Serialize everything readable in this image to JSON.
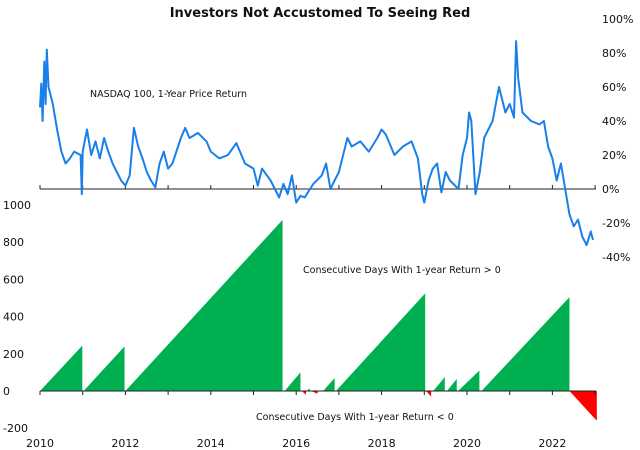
{
  "chart_data": [
    {
      "type": "line",
      "title": "Investors Not Accustomed To Seeing Red",
      "annotation": "NASDAQ 100, 1-Year Price Return",
      "y_axis_side": "right",
      "ylim": [
        -40,
        100
      ],
      "y_ticks": [
        "100%",
        "80%",
        "60%",
        "40%",
        "20%",
        "0%",
        "-20%",
        "-40%"
      ],
      "y_tick_values": [
        100,
        80,
        60,
        40,
        20,
        0,
        -20,
        -40
      ],
      "color": "#1a7fe8",
      "points": [
        [
          2010.0,
          48
        ],
        [
          2010.03,
          62
        ],
        [
          2010.06,
          40
        ],
        [
          2010.1,
          75
        ],
        [
          2010.13,
          50
        ],
        [
          2010.16,
          82
        ],
        [
          2010.2,
          60
        ],
        [
          2010.3,
          50
        ],
        [
          2010.4,
          35
        ],
        [
          2010.5,
          22
        ],
        [
          2010.6,
          15
        ],
        [
          2010.7,
          18
        ],
        [
          2010.8,
          22
        ],
        [
          2010.95,
          20
        ],
        [
          2010.98,
          -3
        ],
        [
          2011.0,
          22
        ],
        [
          2011.1,
          35
        ],
        [
          2011.2,
          20
        ],
        [
          2011.3,
          28
        ],
        [
          2011.4,
          18
        ],
        [
          2011.5,
          30
        ],
        [
          2011.6,
          22
        ],
        [
          2011.7,
          15
        ],
        [
          2011.8,
          10
        ],
        [
          2011.9,
          5
        ],
        [
          2012.0,
          2
        ],
        [
          2012.1,
          8
        ],
        [
          2012.2,
          36
        ],
        [
          2012.3,
          25
        ],
        [
          2012.4,
          18
        ],
        [
          2012.5,
          10
        ],
        [
          2012.6,
          5
        ],
        [
          2012.7,
          1
        ],
        [
          2012.8,
          15
        ],
        [
          2012.9,
          22
        ],
        [
          2013.0,
          12
        ],
        [
          2013.1,
          15
        ],
        [
          2013.3,
          30
        ],
        [
          2013.4,
          36
        ],
        [
          2013.5,
          30
        ],
        [
          2013.7,
          33
        ],
        [
          2013.9,
          28
        ],
        [
          2014.0,
          22
        ],
        [
          2014.2,
          18
        ],
        [
          2014.4,
          20
        ],
        [
          2014.6,
          27
        ],
        [
          2014.8,
          15
        ],
        [
          2015.0,
          12
        ],
        [
          2015.1,
          2
        ],
        [
          2015.2,
          12
        ],
        [
          2015.4,
          5
        ],
        [
          2015.6,
          -5
        ],
        [
          2015.7,
          3
        ],
        [
          2015.8,
          -3
        ],
        [
          2015.9,
          8
        ],
        [
          2016.0,
          -8
        ],
        [
          2016.1,
          -4
        ],
        [
          2016.2,
          -5
        ],
        [
          2016.4,
          3
        ],
        [
          2016.6,
          8
        ],
        [
          2016.7,
          15
        ],
        [
          2016.8,
          0
        ],
        [
          2016.9,
          5
        ],
        [
          2017.0,
          10
        ],
        [
          2017.2,
          30
        ],
        [
          2017.3,
          25
        ],
        [
          2017.5,
          28
        ],
        [
          2017.7,
          22
        ],
        [
          2017.9,
          30
        ],
        [
          2018.0,
          35
        ],
        [
          2018.1,
          32
        ],
        [
          2018.3,
          20
        ],
        [
          2018.5,
          25
        ],
        [
          2018.7,
          28
        ],
        [
          2018.85,
          18
        ],
        [
          2018.95,
          -3
        ],
        [
          2019.0,
          -8
        ],
        [
          2019.1,
          5
        ],
        [
          2019.2,
          12
        ],
        [
          2019.3,
          15
        ],
        [
          2019.4,
          -2
        ],
        [
          2019.5,
          10
        ],
        [
          2019.6,
          5
        ],
        [
          2019.8,
          0
        ],
        [
          2019.9,
          20
        ],
        [
          2020.0,
          30
        ],
        [
          2020.05,
          45
        ],
        [
          2020.1,
          40
        ],
        [
          2020.2,
          -3
        ],
        [
          2020.3,
          10
        ],
        [
          2020.4,
          30
        ],
        [
          2020.6,
          40
        ],
        [
          2020.75,
          60
        ],
        [
          2020.9,
          45
        ],
        [
          2021.0,
          50
        ],
        [
          2021.1,
          42
        ],
        [
          2021.15,
          87
        ],
        [
          2021.2,
          65
        ],
        [
          2021.3,
          45
        ],
        [
          2021.5,
          40
        ],
        [
          2021.7,
          38
        ],
        [
          2021.8,
          40
        ],
        [
          2021.9,
          25
        ],
        [
          2022.0,
          18
        ],
        [
          2022.1,
          5
        ],
        [
          2022.2,
          15
        ],
        [
          2022.3,
          0
        ],
        [
          2022.4,
          -15
        ],
        [
          2022.5,
          -22
        ],
        [
          2022.6,
          -18
        ],
        [
          2022.7,
          -28
        ],
        [
          2022.8,
          -33
        ],
        [
          2022.9,
          -25
        ],
        [
          2022.95,
          -30
        ]
      ]
    },
    {
      "type": "area",
      "y_axis_side": "left",
      "ylim": [
        -200,
        1000
      ],
      "y_ticks": [
        "1000",
        "800",
        "600",
        "400",
        "200",
        "0",
        "-200"
      ],
      "y_tick_values": [
        1000,
        800,
        600,
        400,
        200,
        0,
        -200
      ],
      "x_ticks": [
        "2010",
        "2012",
        "2014",
        "2016",
        "2018",
        "2020",
        "2022"
      ],
      "x_tick_values": [
        2010,
        2012,
        2014,
        2016,
        2018,
        2020,
        2022
      ],
      "xlim": [
        2010,
        2023
      ],
      "positive_label": "Consecutive Days With 1-year Return > 0",
      "negative_label": "Consecutive Days With 1-year Return < 0",
      "positive_color": "#00b050",
      "negative_color": "#ff0000",
      "segments": [
        {
          "start": 2010.0,
          "end": 2010.99,
          "peak": 244
        },
        {
          "start": 2011.02,
          "end": 2011.98,
          "peak": 240
        },
        {
          "start": 2012.0,
          "end": 2015.68,
          "peak": 920
        },
        {
          "start": 2015.73,
          "end": 2016.1,
          "peak": 100
        },
        {
          "start": 2016.13,
          "end": 2016.23,
          "peak": -20
        },
        {
          "start": 2016.25,
          "end": 2016.32,
          "peak": 15
        },
        {
          "start": 2016.35,
          "end": 2016.5,
          "peak": -15
        },
        {
          "start": 2016.63,
          "end": 2016.9,
          "peak": 70
        },
        {
          "start": 2016.93,
          "end": 2019.02,
          "peak": 525
        },
        {
          "start": 2019.04,
          "end": 2019.16,
          "peak": -30
        },
        {
          "start": 2019.21,
          "end": 2019.48,
          "peak": 75
        },
        {
          "start": 2019.53,
          "end": 2019.76,
          "peak": 65
        },
        {
          "start": 2019.79,
          "end": 2020.29,
          "peak": 110
        },
        {
          "start": 2020.34,
          "end": 2022.4,
          "peak": 505
        },
        {
          "start": 2022.4,
          "end": 2023.04,
          "peak": -160
        }
      ]
    }
  ]
}
